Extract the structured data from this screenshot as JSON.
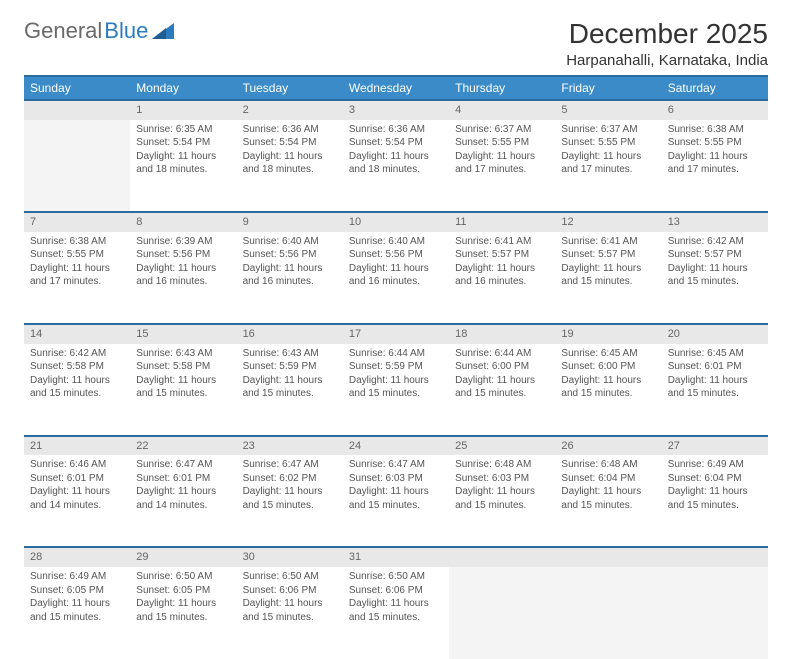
{
  "logo": {
    "text1": "General",
    "text2": "Blue"
  },
  "title": "December 2025",
  "location": "Harpanahalli, Karnataka, India",
  "colors": {
    "header_bg": "#3b8bc9",
    "header_border": "#2b6ca0",
    "daynum_bg": "#e8e8e8",
    "text": "#555555",
    "logo_gray": "#6a6a6a",
    "logo_blue": "#2b7bbf"
  },
  "weekdays": [
    "Sunday",
    "Monday",
    "Tuesday",
    "Wednesday",
    "Thursday",
    "Friday",
    "Saturday"
  ],
  "weeks": [
    {
      "days": [
        null,
        {
          "n": "1",
          "sr": "6:35 AM",
          "ss": "5:54 PM",
          "dl": "11 hours and 18 minutes."
        },
        {
          "n": "2",
          "sr": "6:36 AM",
          "ss": "5:54 PM",
          "dl": "11 hours and 18 minutes."
        },
        {
          "n": "3",
          "sr": "6:36 AM",
          "ss": "5:54 PM",
          "dl": "11 hours and 18 minutes."
        },
        {
          "n": "4",
          "sr": "6:37 AM",
          "ss": "5:55 PM",
          "dl": "11 hours and 17 minutes."
        },
        {
          "n": "5",
          "sr": "6:37 AM",
          "ss": "5:55 PM",
          "dl": "11 hours and 17 minutes."
        },
        {
          "n": "6",
          "sr": "6:38 AM",
          "ss": "5:55 PM",
          "dl": "11 hours and 17 minutes."
        }
      ]
    },
    {
      "days": [
        {
          "n": "7",
          "sr": "6:38 AM",
          "ss": "5:55 PM",
          "dl": "11 hours and 17 minutes."
        },
        {
          "n": "8",
          "sr": "6:39 AM",
          "ss": "5:56 PM",
          "dl": "11 hours and 16 minutes."
        },
        {
          "n": "9",
          "sr": "6:40 AM",
          "ss": "5:56 PM",
          "dl": "11 hours and 16 minutes."
        },
        {
          "n": "10",
          "sr": "6:40 AM",
          "ss": "5:56 PM",
          "dl": "11 hours and 16 minutes."
        },
        {
          "n": "11",
          "sr": "6:41 AM",
          "ss": "5:57 PM",
          "dl": "11 hours and 16 minutes."
        },
        {
          "n": "12",
          "sr": "6:41 AM",
          "ss": "5:57 PM",
          "dl": "11 hours and 15 minutes."
        },
        {
          "n": "13",
          "sr": "6:42 AM",
          "ss": "5:57 PM",
          "dl": "11 hours and 15 minutes."
        }
      ]
    },
    {
      "days": [
        {
          "n": "14",
          "sr": "6:42 AM",
          "ss": "5:58 PM",
          "dl": "11 hours and 15 minutes."
        },
        {
          "n": "15",
          "sr": "6:43 AM",
          "ss": "5:58 PM",
          "dl": "11 hours and 15 minutes."
        },
        {
          "n": "16",
          "sr": "6:43 AM",
          "ss": "5:59 PM",
          "dl": "11 hours and 15 minutes."
        },
        {
          "n": "17",
          "sr": "6:44 AM",
          "ss": "5:59 PM",
          "dl": "11 hours and 15 minutes."
        },
        {
          "n": "18",
          "sr": "6:44 AM",
          "ss": "6:00 PM",
          "dl": "11 hours and 15 minutes."
        },
        {
          "n": "19",
          "sr": "6:45 AM",
          "ss": "6:00 PM",
          "dl": "11 hours and 15 minutes."
        },
        {
          "n": "20",
          "sr": "6:45 AM",
          "ss": "6:01 PM",
          "dl": "11 hours and 15 minutes."
        }
      ]
    },
    {
      "days": [
        {
          "n": "21",
          "sr": "6:46 AM",
          "ss": "6:01 PM",
          "dl": "11 hours and 14 minutes."
        },
        {
          "n": "22",
          "sr": "6:47 AM",
          "ss": "6:01 PM",
          "dl": "11 hours and 14 minutes."
        },
        {
          "n": "23",
          "sr": "6:47 AM",
          "ss": "6:02 PM",
          "dl": "11 hours and 15 minutes."
        },
        {
          "n": "24",
          "sr": "6:47 AM",
          "ss": "6:03 PM",
          "dl": "11 hours and 15 minutes."
        },
        {
          "n": "25",
          "sr": "6:48 AM",
          "ss": "6:03 PM",
          "dl": "11 hours and 15 minutes."
        },
        {
          "n": "26",
          "sr": "6:48 AM",
          "ss": "6:04 PM",
          "dl": "11 hours and 15 minutes."
        },
        {
          "n": "27",
          "sr": "6:49 AM",
          "ss": "6:04 PM",
          "dl": "11 hours and 15 minutes."
        }
      ]
    },
    {
      "days": [
        {
          "n": "28",
          "sr": "6:49 AM",
          "ss": "6:05 PM",
          "dl": "11 hours and 15 minutes."
        },
        {
          "n": "29",
          "sr": "6:50 AM",
          "ss": "6:05 PM",
          "dl": "11 hours and 15 minutes."
        },
        {
          "n": "30",
          "sr": "6:50 AM",
          "ss": "6:06 PM",
          "dl": "11 hours and 15 minutes."
        },
        {
          "n": "31",
          "sr": "6:50 AM",
          "ss": "6:06 PM",
          "dl": "11 hours and 15 minutes."
        },
        null,
        null,
        null
      ]
    }
  ],
  "labels": {
    "sunrise": "Sunrise:",
    "sunset": "Sunset:",
    "daylight": "Daylight:"
  }
}
